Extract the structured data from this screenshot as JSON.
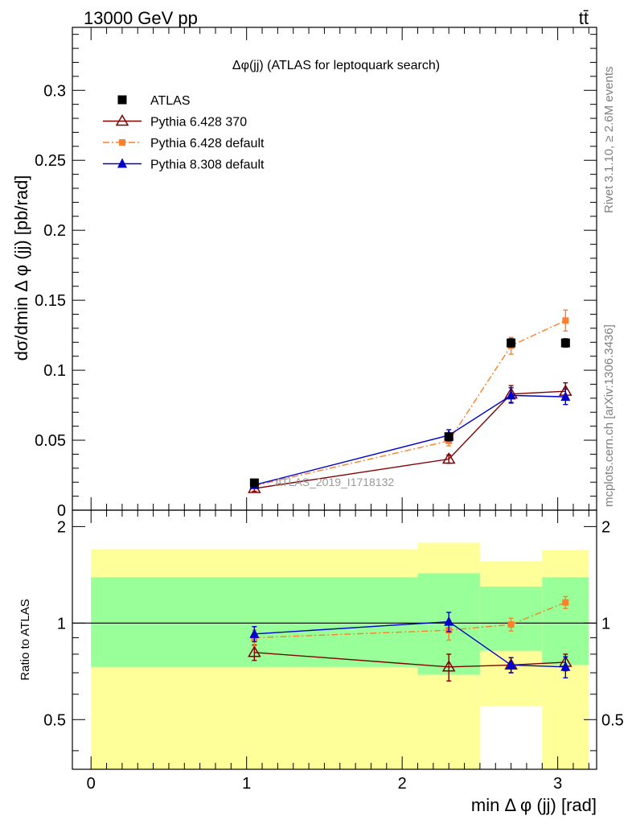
{
  "header": {
    "energy_label": "13000 GeV pp",
    "process_label": "tt̄"
  },
  "side_labels": {
    "rivet": "Rivet 3.1.10, ≥ 2.6M events",
    "mcplots": "mcplots.cern.ch [arXiv:1306.3436]"
  },
  "chart_data": [
    {
      "type": "scatter",
      "panel": "main",
      "title": "Δφ(jj) (ATLAS for leptoquark search)",
      "watermark": "ATLAS_2019_I1718132",
      "ylabel": "dσ/dmin Δ φ (jj) [pb/rad]",
      "xlim": [
        -0.12,
        3.25
      ],
      "ylim": [
        0,
        0.345
      ],
      "yticks": [
        "0",
        "0.05",
        "0.1",
        "0.15",
        "0.2",
        "0.25",
        "0.3"
      ],
      "ytick_values": [
        0,
        0.05,
        0.1,
        0.15,
        0.2,
        0.25,
        0.3
      ],
      "grid": false,
      "legend_position": "top-left",
      "series": [
        {
          "name": "ATLAS",
          "color": "#000000",
          "marker": "filled-square",
          "line": "none",
          "x": [
            1.05,
            2.3,
            2.7,
            3.05
          ],
          "y": [
            0.0195,
            0.0525,
            0.1195,
            0.1195
          ],
          "err": [
            0.001,
            0.0025,
            0.003,
            0.003
          ]
        },
        {
          "name": "Pythia 6.428 370",
          "color": "#800000",
          "marker": "open-triangle",
          "line": "solid",
          "x": [
            1.05,
            2.3,
            2.7,
            3.05
          ],
          "y": [
            0.0155,
            0.0365,
            0.083,
            0.085
          ],
          "err": [
            0.002,
            0.003,
            0.006,
            0.006
          ]
        },
        {
          "name": "Pythia 6.428 default",
          "color": "#ff7f2a",
          "marker": "filled-square-small",
          "line": "dashdot",
          "x": [
            1.05,
            2.3,
            2.7,
            3.05
          ],
          "y": [
            0.0175,
            0.0495,
            0.1175,
            0.1355
          ],
          "err": [
            0.002,
            0.0035,
            0.006,
            0.0075
          ]
        },
        {
          "name": "Pythia 8.308 default",
          "color": "#0000cc",
          "marker": "filled-triangle",
          "line": "solid",
          "x": [
            1.05,
            2.3,
            2.7,
            3.05
          ],
          "y": [
            0.018,
            0.0535,
            0.082,
            0.081
          ],
          "err": [
            0.002,
            0.004,
            0.0055,
            0.0055
          ]
        }
      ]
    },
    {
      "type": "scatter",
      "panel": "ratio",
      "ylabel": "Ratio to ATLAS",
      "xlabel": "min Δ φ (jj) [rad]",
      "xlim": [
        -0.12,
        3.25
      ],
      "ylim": [
        0.35,
        2.25
      ],
      "xticks": [
        "0",
        "1",
        "2",
        "3"
      ],
      "xtick_values": [
        0,
        1,
        2,
        3
      ],
      "yticks": [
        "0.5",
        "1",
        "2"
      ],
      "ytick_values": [
        0.5,
        1,
        2
      ],
      "reference_line": 1,
      "bands": [
        {
          "x0": 0.0,
          "x1": 2.1,
          "inner": [
            0.73,
            1.39
          ],
          "outer": [
            0.35,
            1.7
          ]
        },
        {
          "x0": 2.1,
          "x1": 2.5,
          "inner": [
            0.69,
            1.43
          ],
          "outer": [
            0.35,
            1.78
          ]
        },
        {
          "x0": 2.5,
          "x1": 2.9,
          "inner": [
            0.82,
            1.3
          ],
          "outer": [
            0.55,
            1.56
          ]
        },
        {
          "x0": 2.9,
          "x1": 3.2,
          "inner": [
            0.74,
            1.39
          ],
          "outer": [
            0.35,
            1.69
          ]
        }
      ],
      "band_colors": {
        "inner": "#99ff99",
        "outer": "#ffff99"
      },
      "series": [
        {
          "name": "Pythia 6.428 370",
          "color": "#800000",
          "marker": "open-triangle",
          "line": "solid",
          "x": [
            1.05,
            2.3,
            2.7,
            3.05
          ],
          "y": [
            0.81,
            0.73,
            0.74,
            0.755
          ],
          "err": [
            0.045,
            0.07,
            0.04,
            0.045
          ]
        },
        {
          "name": "Pythia 6.428 default",
          "color": "#ff7f2a",
          "marker": "filled-square-small",
          "line": "dashdot",
          "x": [
            1.05,
            2.3,
            2.7,
            3.05
          ],
          "y": [
            0.9,
            0.95,
            0.99,
            1.16
          ],
          "err": [
            0.05,
            0.065,
            0.045,
            0.05
          ]
        },
        {
          "name": "Pythia 8.308 default",
          "color": "#0000cc",
          "marker": "filled-triangle",
          "line": "solid",
          "x": [
            1.05,
            2.3,
            2.7,
            3.05
          ],
          "y": [
            0.925,
            1.01,
            0.74,
            0.73
          ],
          "err": [
            0.05,
            0.07,
            0.04,
            0.055
          ]
        }
      ]
    }
  ]
}
